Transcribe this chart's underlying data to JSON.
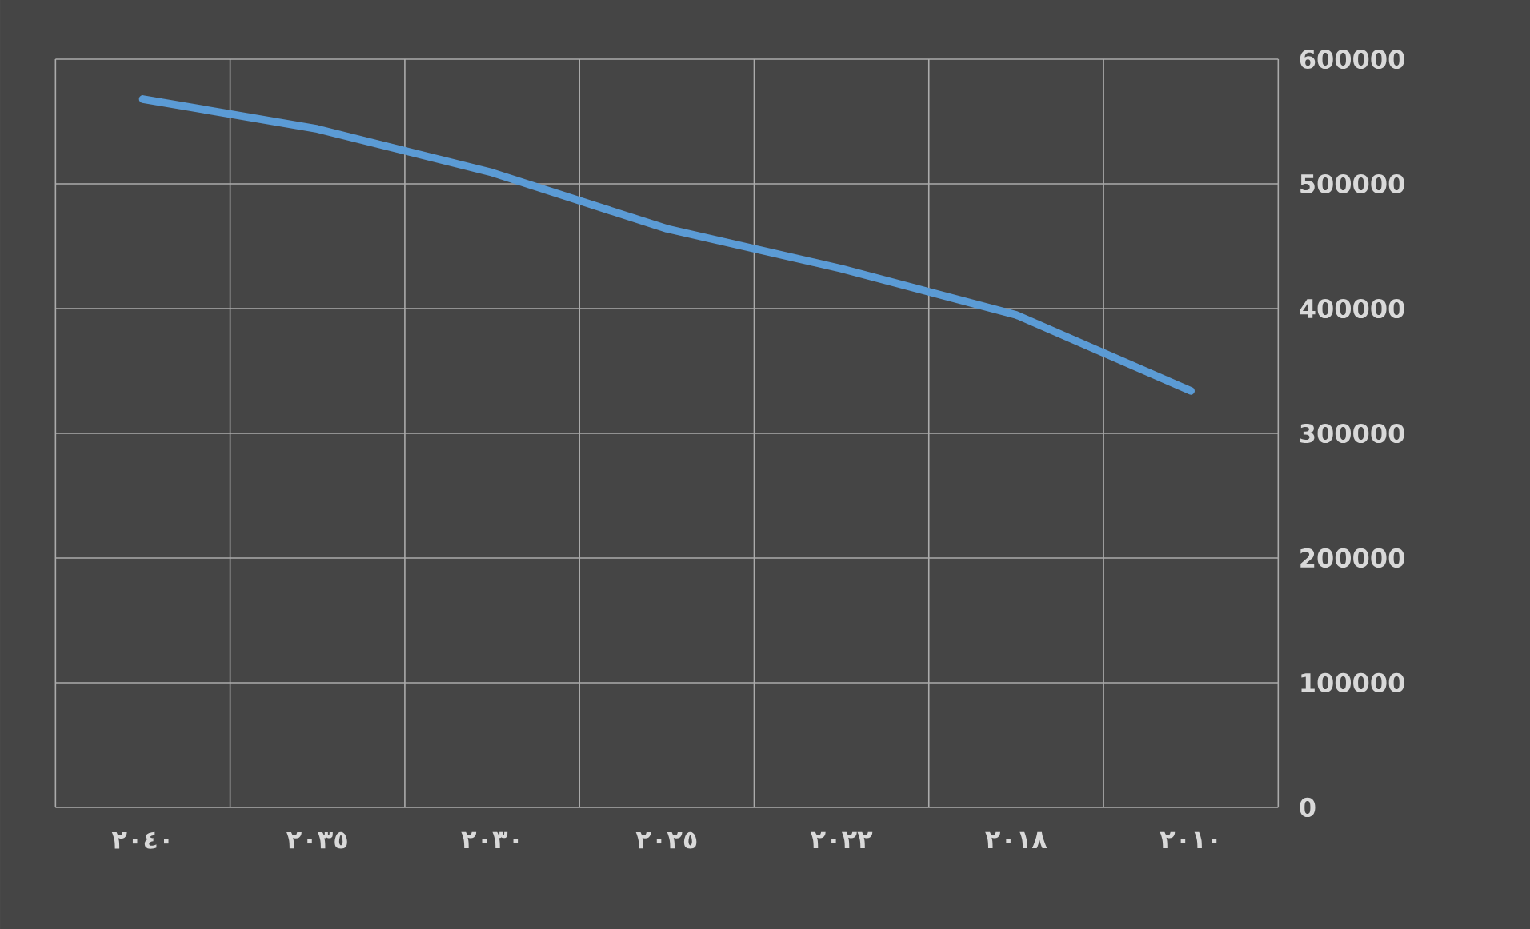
{
  "chart_data": {
    "type": "line",
    "categories": [
      "٢٠٤٠",
      "٢٠٣٥",
      "٢٠٣٠",
      "٢٠٢٥",
      "٢٠٢٢",
      "٢٠١٨",
      "٢٠١٠"
    ],
    "series": [
      {
        "color": "#5b9bd5",
        "values": [
          568000,
          544000,
          509000,
          464000,
          432000,
          395000,
          334000
        ]
      }
    ],
    "ylim": [
      0,
      600000
    ],
    "yticks": [
      0,
      100000,
      200000,
      300000,
      400000,
      500000,
      600000
    ],
    "grid": true,
    "marker": "none",
    "line_style": "solid"
  }
}
